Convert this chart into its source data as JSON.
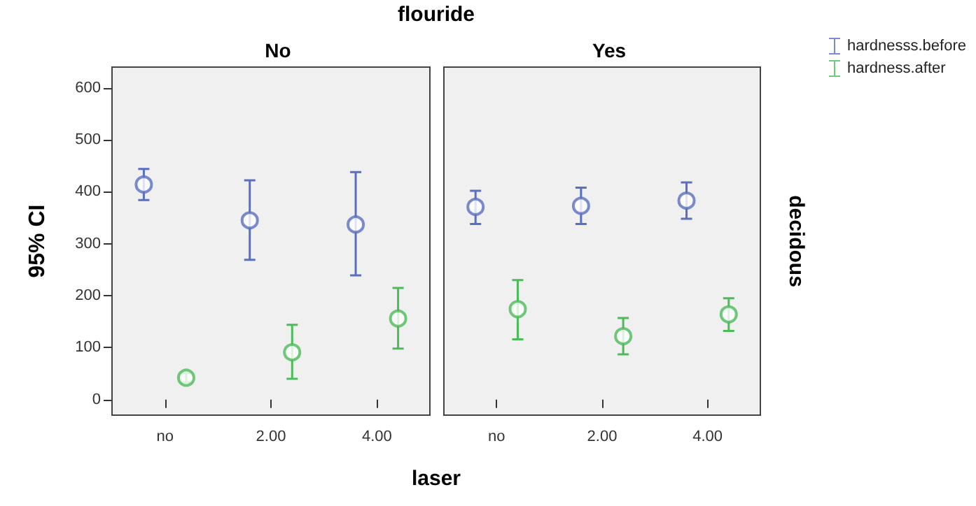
{
  "chart_data": [
    {
      "type": "scatter",
      "title": "No",
      "ylabel": "95% CI",
      "categories": [
        "no",
        "2.00",
        "4.00"
      ],
      "ylim": [
        -30,
        640
      ],
      "yticks": [
        0,
        100,
        200,
        300,
        400,
        500,
        600
      ],
      "marker": "circle",
      "grid": false,
      "legend": false,
      "annotations": [
        "flouride",
        "laser"
      ],
      "series": [
        {
          "color": "#5a6fbf",
          "values": [
            414,
            345,
            337
          ],
          "errors": [
            [
              384,
              444
            ],
            [
              269,
              422
            ],
            [
              239,
              438
            ]
          ]
        },
        {
          "color": "#4cbb5a",
          "values": [
            42,
            91,
            156
          ],
          "errors": [
            [
              33,
              51
            ],
            [
              40,
              144
            ],
            [
              98,
              215
            ]
          ]
        }
      ]
    },
    {
      "type": "scatter",
      "title": "Yes",
      "y2label": "decidous",
      "categories": [
        "no",
        "2.00",
        "4.00"
      ],
      "ylim": [
        -30,
        640
      ],
      "yticks": [
        0,
        100,
        200,
        300,
        400,
        500,
        600
      ],
      "tick_labels": "x",
      "marker": "circle",
      "grid": false,
      "legend": "right",
      "series": [
        {
          "name": "hardnesss.before",
          "color": "#5a6fbf",
          "values": [
            371,
            373,
            383
          ],
          "errors": [
            [
              338,
              402
            ],
            [
              338,
              408
            ],
            [
              348,
              418
            ]
          ]
        },
        {
          "name": "hardness.after",
          "color": "#4cbb5a",
          "values": [
            174,
            122,
            164
          ],
          "errors": [
            [
              116,
              230
            ],
            [
              87,
              157
            ],
            [
              132,
              195
            ]
          ]
        }
      ]
    }
  ]
}
